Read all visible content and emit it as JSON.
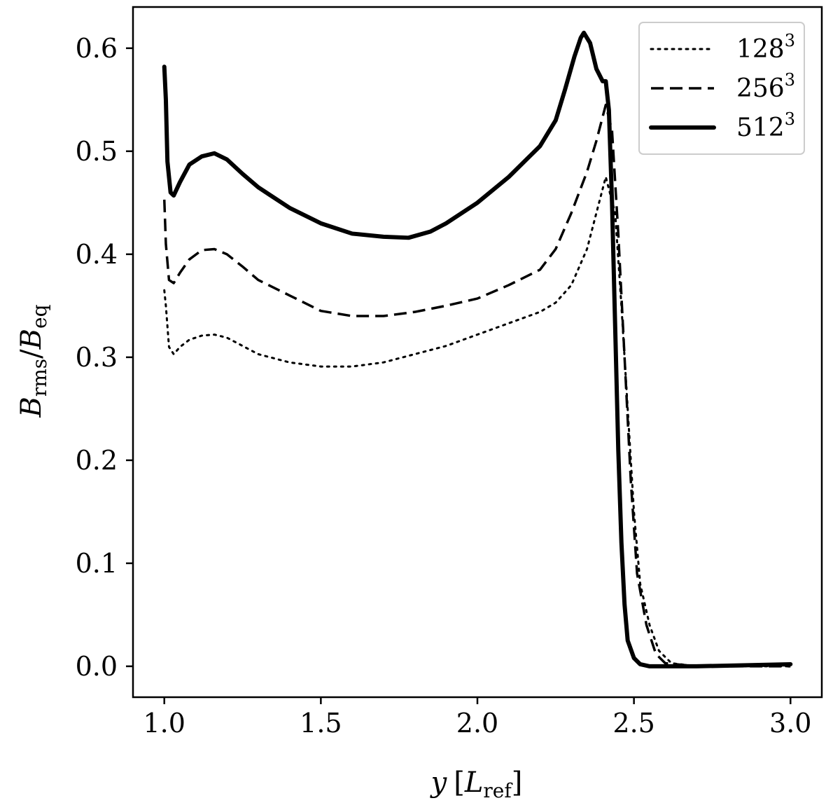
{
  "chart_data": {
    "type": "line",
    "title": "",
    "xlabel": {
      "var": "y",
      "open": "[",
      "L": "L",
      "sub": "ref",
      "close": "]"
    },
    "ylabel": {
      "B1": "B",
      "sub1": "rms",
      "slash": "/",
      "B2": "B",
      "sub2": "eq"
    },
    "xlim": [
      0.9,
      3.1
    ],
    "ylim": [
      -0.03,
      0.64
    ],
    "xticks": [
      "1.0",
      "1.5",
      "2.0",
      "2.5",
      "3.0"
    ],
    "yticks": [
      "0.0",
      "0.1",
      "0.2",
      "0.3",
      "0.4",
      "0.5",
      "0.6"
    ],
    "grid": false,
    "legend_position": "top-right",
    "series": [
      {
        "name": "128",
        "name_sup": "3",
        "style": "dotted",
        "x": [
          1.0,
          1.005,
          1.015,
          1.03,
          1.05,
          1.08,
          1.12,
          1.16,
          1.2,
          1.25,
          1.3,
          1.4,
          1.5,
          1.6,
          1.7,
          1.8,
          1.9,
          2.0,
          2.1,
          2.2,
          2.25,
          2.3,
          2.35,
          2.38,
          2.41,
          2.44,
          2.46,
          2.48,
          2.5,
          2.52,
          2.55,
          2.58,
          2.62,
          2.7,
          3.0
        ],
        "y": [
          0.365,
          0.35,
          0.31,
          0.303,
          0.31,
          0.317,
          0.321,
          0.322,
          0.319,
          0.311,
          0.303,
          0.295,
          0.291,
          0.291,
          0.295,
          0.303,
          0.311,
          0.322,
          0.333,
          0.344,
          0.353,
          0.37,
          0.405,
          0.44,
          0.475,
          0.44,
          0.35,
          0.25,
          0.15,
          0.08,
          0.04,
          0.015,
          0.003,
          0.0,
          0.0
        ]
      },
      {
        "name": "256",
        "name_sup": "3",
        "style": "dashed",
        "x": [
          1.0,
          1.005,
          1.015,
          1.03,
          1.05,
          1.08,
          1.12,
          1.16,
          1.2,
          1.25,
          1.3,
          1.4,
          1.5,
          1.6,
          1.7,
          1.8,
          1.9,
          2.0,
          2.1,
          2.2,
          2.25,
          2.3,
          2.35,
          2.38,
          2.41,
          2.43,
          2.45,
          2.47,
          2.49,
          2.51,
          2.54,
          2.57,
          2.6,
          2.7,
          3.0
        ],
        "y": [
          0.453,
          0.41,
          0.375,
          0.372,
          0.382,
          0.395,
          0.404,
          0.405,
          0.4,
          0.388,
          0.375,
          0.36,
          0.345,
          0.34,
          0.34,
          0.344,
          0.35,
          0.357,
          0.37,
          0.385,
          0.405,
          0.44,
          0.48,
          0.51,
          0.545,
          0.52,
          0.42,
          0.3,
          0.18,
          0.09,
          0.04,
          0.012,
          0.003,
          0.0,
          0.0
        ]
      },
      {
        "name": "512",
        "name_sup": "3",
        "style": "solid",
        "x": [
          1.0,
          1.005,
          1.01,
          1.02,
          1.03,
          1.05,
          1.08,
          1.12,
          1.16,
          1.2,
          1.25,
          1.3,
          1.4,
          1.5,
          1.6,
          1.7,
          1.78,
          1.85,
          1.9,
          2.0,
          2.1,
          2.2,
          2.25,
          2.28,
          2.31,
          2.33,
          2.34,
          2.36,
          2.38,
          2.4,
          2.41,
          2.42,
          2.43,
          2.44,
          2.45,
          2.46,
          2.47,
          2.48,
          2.5,
          2.52,
          2.55,
          2.6,
          2.7,
          3.0
        ],
        "y": [
          0.582,
          0.55,
          0.49,
          0.46,
          0.457,
          0.47,
          0.487,
          0.495,
          0.498,
          0.492,
          0.478,
          0.465,
          0.445,
          0.43,
          0.42,
          0.417,
          0.416,
          0.422,
          0.43,
          0.45,
          0.475,
          0.505,
          0.53,
          0.56,
          0.592,
          0.61,
          0.615,
          0.605,
          0.58,
          0.568,
          0.568,
          0.54,
          0.45,
          0.33,
          0.21,
          0.12,
          0.06,
          0.025,
          0.008,
          0.002,
          0.0,
          0.0,
          0.0,
          0.002
        ]
      }
    ]
  }
}
